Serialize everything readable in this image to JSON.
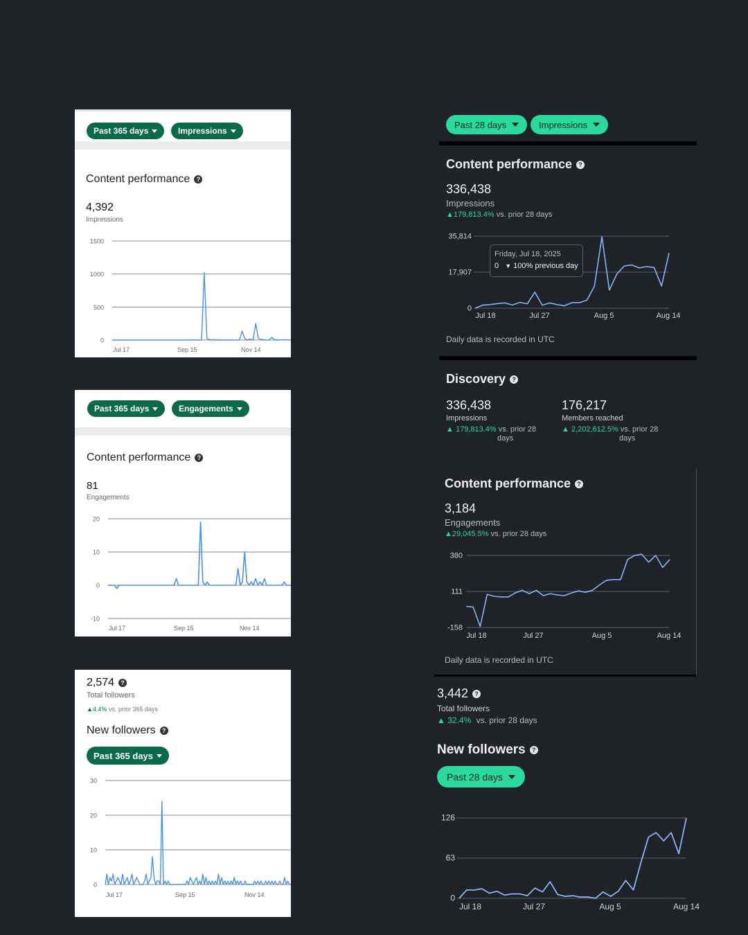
{
  "left": {
    "impressions_panel": {
      "range_filter": "Past 365 days",
      "metric_filter": "Impressions",
      "title": "Content performance",
      "value": "4,392",
      "value_label": "Impressions",
      "y_ticks": [
        "1500",
        "1000",
        "500",
        "0"
      ],
      "x_ticks": [
        "Jul 17",
        "Sep 15",
        "Nov 14"
      ]
    },
    "engagements_panel": {
      "range_filter": "Past 365 days",
      "metric_filter": "Engagements",
      "title": "Content performance",
      "value": "81",
      "value_label": "Engagements",
      "y_ticks": [
        "20",
        "10",
        "0",
        "-10"
      ],
      "x_ticks": [
        "Jul 17",
        "Sep 15",
        "Nov 14"
      ]
    },
    "followers_panel": {
      "total": "2,574",
      "total_label": "Total followers",
      "change": "4.4%",
      "change_suffix": "vs. prior 365 days",
      "title": "New followers",
      "range_filter": "Past 365 days",
      "y_ticks": [
        "30",
        "20",
        "10",
        "0"
      ],
      "x_ticks": [
        "Jul 17",
        "Sep 15",
        "Nov 14"
      ]
    }
  },
  "right": {
    "filters": {
      "range": "Past 28 days",
      "metric": "Impressions"
    },
    "impressions_section": {
      "title": "Content performance",
      "value": "336,438",
      "value_label": "Impressions",
      "change": "179,813.4%",
      "change_suffix": "vs. prior 28 days",
      "y_ticks": [
        "35,814",
        "17,907",
        "0"
      ],
      "x_ticks": [
        "Jul 18",
        "Jul 27",
        "Aug 5",
        "Aug 14"
      ],
      "tooltip_date": "Friday, Jul 18, 2025",
      "tooltip_value": "0",
      "tooltip_change": "100% previous day",
      "footnote": "Daily data is recorded in UTC"
    },
    "discovery_section": {
      "title": "Discovery",
      "impressions_value": "336,438",
      "impressions_label": "Impressions",
      "impressions_change": "179,813.4%",
      "impressions_suffix_1": "vs. prior 28",
      "impressions_suffix_2": "days",
      "members_value": "176,217",
      "members_label": "Members reached",
      "members_change": "2,202,612.5%",
      "members_suffix_1": "vs. prior 28",
      "members_suffix_2": "days"
    },
    "engagements_section": {
      "title": "Content performance",
      "value": "3,184",
      "value_label": "Engagements",
      "change": "29,045.5%",
      "change_suffix": "vs. prior 28 days",
      "y_ticks": [
        "380",
        "111",
        "-158"
      ],
      "x_ticks": [
        "Jul 18",
        "Jul 27",
        "Aug 5",
        "Aug 14"
      ],
      "footnote": "Daily data is recorded in UTC"
    },
    "followers_section": {
      "total": "3,442",
      "total_label": "Total followers",
      "change": "32.4%",
      "change_suffix": "vs. prior 28 days",
      "title": "New followers",
      "range_filter": "Past 28 days",
      "y_ticks": [
        "126",
        "63",
        "0"
      ],
      "x_ticks": [
        "Jul 18",
        "Jul 27",
        "Aug 5",
        "Aug 14"
      ]
    }
  },
  "colors": {
    "background": "#1f2226",
    "accent_green": "#2bd99c",
    "pill_green_dark": "#0a6a4a",
    "line_blue": "#4a90e2",
    "line_blue_light": "#8ab4f8"
  },
  "chart_data": [
    {
      "type": "line",
      "title": "",
      "ylim": [
        0,
        1500
      ],
      "x_ticks": [
        "Jul 17",
        "Sep 15",
        "Nov 14"
      ],
      "series": [
        {
          "values": [
            0,
            0,
            0,
            0,
            0,
            0,
            0,
            0,
            0,
            0,
            0,
            0,
            0,
            0,
            0,
            0,
            0,
            0,
            0,
            0,
            0,
            0,
            0,
            0,
            0,
            0,
            0,
            0,
            0,
            2,
            3,
            1,
            0,
            1,
            1020,
            20,
            5,
            5,
            4,
            4,
            0,
            0,
            3,
            1,
            2,
            0,
            1,
            3,
            135,
            20,
            3,
            15,
            0,
            250,
            20,
            10,
            5,
            1,
            3,
            40,
            2,
            5,
            2,
            3,
            3,
            2,
            0
          ]
        }
      ]
    },
    {
      "type": "line",
      "title": "",
      "ylim": [
        -10,
        20
      ],
      "x_ticks": [
        "Jul 17",
        "Sep 15",
        "Nov 14"
      ],
      "series": [
        {
          "values": [
            0,
            0,
            0,
            0,
            -1,
            0,
            0,
            0,
            0,
            0,
            0,
            0,
            0,
            0,
            0,
            0,
            0,
            0,
            0,
            0,
            0,
            0,
            0,
            0,
            0,
            0,
            0,
            0,
            0,
            0,
            0,
            2,
            0,
            0,
            0,
            0,
            0,
            0,
            0,
            0,
            0,
            0,
            19,
            1,
            0,
            1,
            0,
            0,
            0,
            0,
            0,
            0,
            0,
            0,
            0,
            0,
            0,
            0,
            0,
            5,
            0,
            1,
            10,
            1,
            0,
            1,
            0,
            2,
            0,
            1,
            0,
            2,
            0,
            0,
            0,
            0,
            0,
            0,
            0,
            0,
            1,
            0,
            0,
            0
          ]
        }
      ]
    },
    {
      "type": "line",
      "title": "",
      "ylim": [
        0,
        30
      ],
      "x_ticks": [
        "Jul 17",
        "Sep 15",
        "Nov 14"
      ],
      "series": [
        {
          "values": [
            0,
            3,
            0,
            2,
            1,
            3,
            0,
            1,
            2,
            1,
            0,
            3,
            0,
            1,
            2,
            0,
            1,
            3,
            0,
            1,
            2,
            1,
            0,
            0,
            0,
            1,
            3,
            0,
            1,
            2,
            8,
            2,
            0,
            1,
            1,
            0,
            24,
            0,
            1,
            0,
            1,
            0,
            0,
            0,
            0,
            0,
            0,
            0,
            0,
            0,
            0,
            0,
            1,
            0,
            2,
            1,
            0,
            1,
            2,
            0,
            1,
            0,
            3,
            0,
            2,
            0,
            1,
            0,
            1,
            0,
            1,
            0,
            3,
            0,
            2,
            0,
            1,
            0,
            1,
            0,
            1,
            0,
            2,
            0,
            1,
            0,
            1,
            0,
            0,
            1,
            0,
            0,
            0,
            0,
            0,
            1,
            0,
            1,
            0,
            1,
            0,
            0,
            1,
            0,
            1,
            0,
            1,
            0,
            1,
            0,
            0,
            1,
            0,
            0,
            2,
            0,
            1,
            0,
            0
          ]
        }
      ]
    },
    {
      "type": "line",
      "title": "",
      "ylim": [
        0,
        35814
      ],
      "x_ticks": [
        "Jul 18",
        "Jul 27",
        "Aug 5",
        "Aug 14"
      ],
      "series": [
        {
          "values": [
            0,
            1500,
            1800,
            2300,
            2600,
            1600,
            2900,
            2200,
            8000,
            1500,
            2600,
            1800,
            1200,
            2800,
            2800,
            4000,
            11000,
            35500,
            9000,
            17000,
            21000,
            21500,
            20000,
            20700,
            20200,
            11000,
            27500
          ]
        }
      ]
    },
    {
      "type": "line",
      "title": "",
      "ylim": [
        -158,
        380
      ],
      "x_ticks": [
        "Jul 18",
        "Jul 27",
        "Aug 5",
        "Aug 14"
      ],
      "series": [
        {
          "values": [
            0,
            -5,
            -150,
            90,
            75,
            70,
            70,
            100,
            120,
            95,
            120,
            80,
            95,
            85,
            80,
            100,
            115,
            105,
            120,
            160,
            195,
            200,
            200,
            350,
            380,
            390,
            330,
            380,
            290,
            350
          ]
        }
      ]
    },
    {
      "type": "line",
      "title": "",
      "ylim": [
        0,
        126
      ],
      "x_ticks": [
        "Jul 18",
        "Jul 27",
        "Aug 5",
        "Aug 14"
      ],
      "series": [
        {
          "values": [
            0,
            13,
            13,
            15,
            8,
            11,
            5,
            7,
            7,
            4,
            16,
            10,
            26,
            6,
            3,
            4,
            2,
            2,
            0,
            10,
            3,
            11,
            28,
            13,
            56,
            96,
            103,
            90,
            103,
            70,
            126
          ]
        }
      ]
    }
  ]
}
